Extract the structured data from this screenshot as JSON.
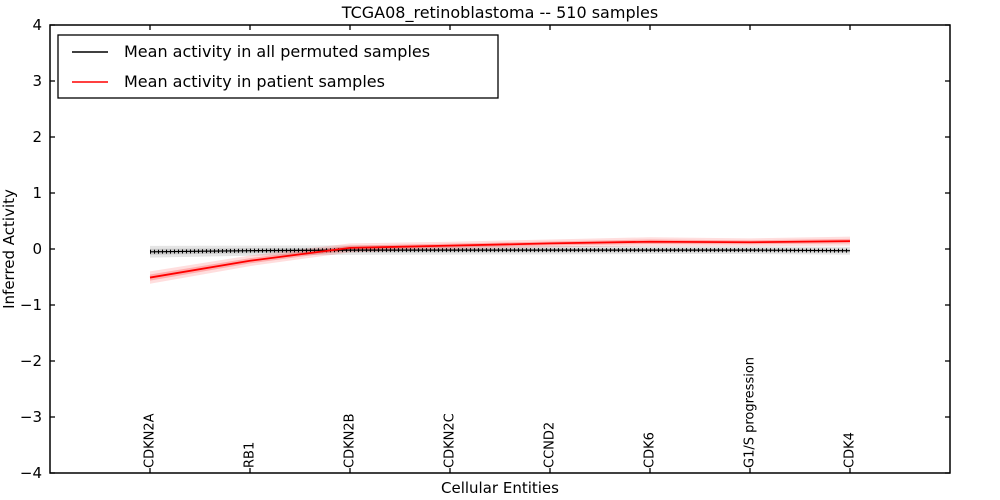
{
  "figure": {
    "background": "#ffffff",
    "frame_color": "#000000"
  },
  "chart_data": {
    "type": "line",
    "title": "TCGA08_retinoblastoma -- 510 samples",
    "xlabel": "Cellular Entities",
    "ylabel": "Inferred Activity",
    "ylim": [
      -4,
      4
    ],
    "yticks": [
      4,
      3,
      2,
      1,
      0,
      -1,
      -2,
      -3,
      -4
    ],
    "grid": false,
    "legend_position": "upper left",
    "categories": [
      "CDKN2A",
      "RB1",
      "CDKN2B",
      "CDKN2C",
      "CCND2",
      "CDK6",
      "G1/S progression",
      "CDK4"
    ],
    "series": [
      {
        "name": "Mean activity in all permuted samples",
        "color": "#000000",
        "band_color": "#000000",
        "marker_ticks": true,
        "values": [
          -0.05,
          -0.03,
          -0.02,
          -0.02,
          -0.02,
          -0.02,
          -0.02,
          -0.03
        ],
        "band_halfwidth": [
          0.105,
          0.09,
          0.085,
          0.08,
          0.075,
          0.07,
          0.07,
          0.07
        ]
      },
      {
        "name": "Mean activity in patient samples",
        "color": "#ff0000",
        "band_color": "#ff0000",
        "marker_ticks": false,
        "values": [
          -0.51,
          -0.21,
          0.02,
          0.06,
          0.1,
          0.13,
          0.12,
          0.14
        ],
        "band_halfwidth": [
          0.11,
          0.095,
          0.08,
          0.07,
          0.07,
          0.08,
          0.07,
          0.08
        ]
      }
    ]
  }
}
